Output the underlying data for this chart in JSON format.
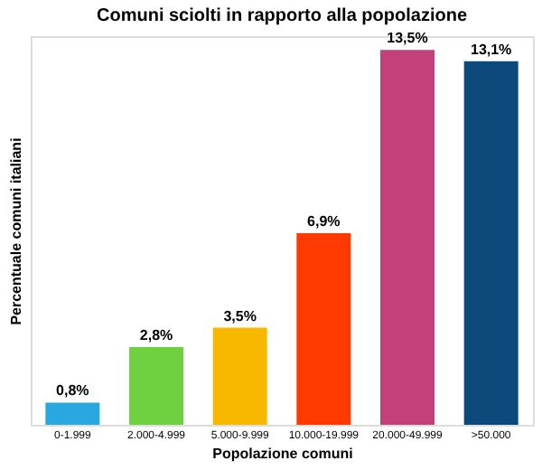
{
  "chart_data": {
    "type": "bar",
    "title": "Comuni sciolti in rapporto alla popolazione",
    "xlabel": "Popolazione comuni",
    "ylabel": "Percentuale comuni italiani",
    "categories": [
      "0-1.999",
      "2.000-4.999",
      "5.000-9.999",
      "10.000-19.999",
      "20.000-49.999",
      ">50.000"
    ],
    "values": [
      0.8,
      2.8,
      3.5,
      6.9,
      13.5,
      13.1
    ],
    "value_labels": [
      "0,8%",
      "2,8%",
      "3,5%",
      "6,9%",
      "13,5%",
      "13,1%"
    ],
    "colors": [
      "#29a8e0",
      "#6fd13f",
      "#f9b800",
      "#ff3a00",
      "#c2417a",
      "#0b4a7a"
    ],
    "tick_labels": "x",
    "grid": false
  }
}
